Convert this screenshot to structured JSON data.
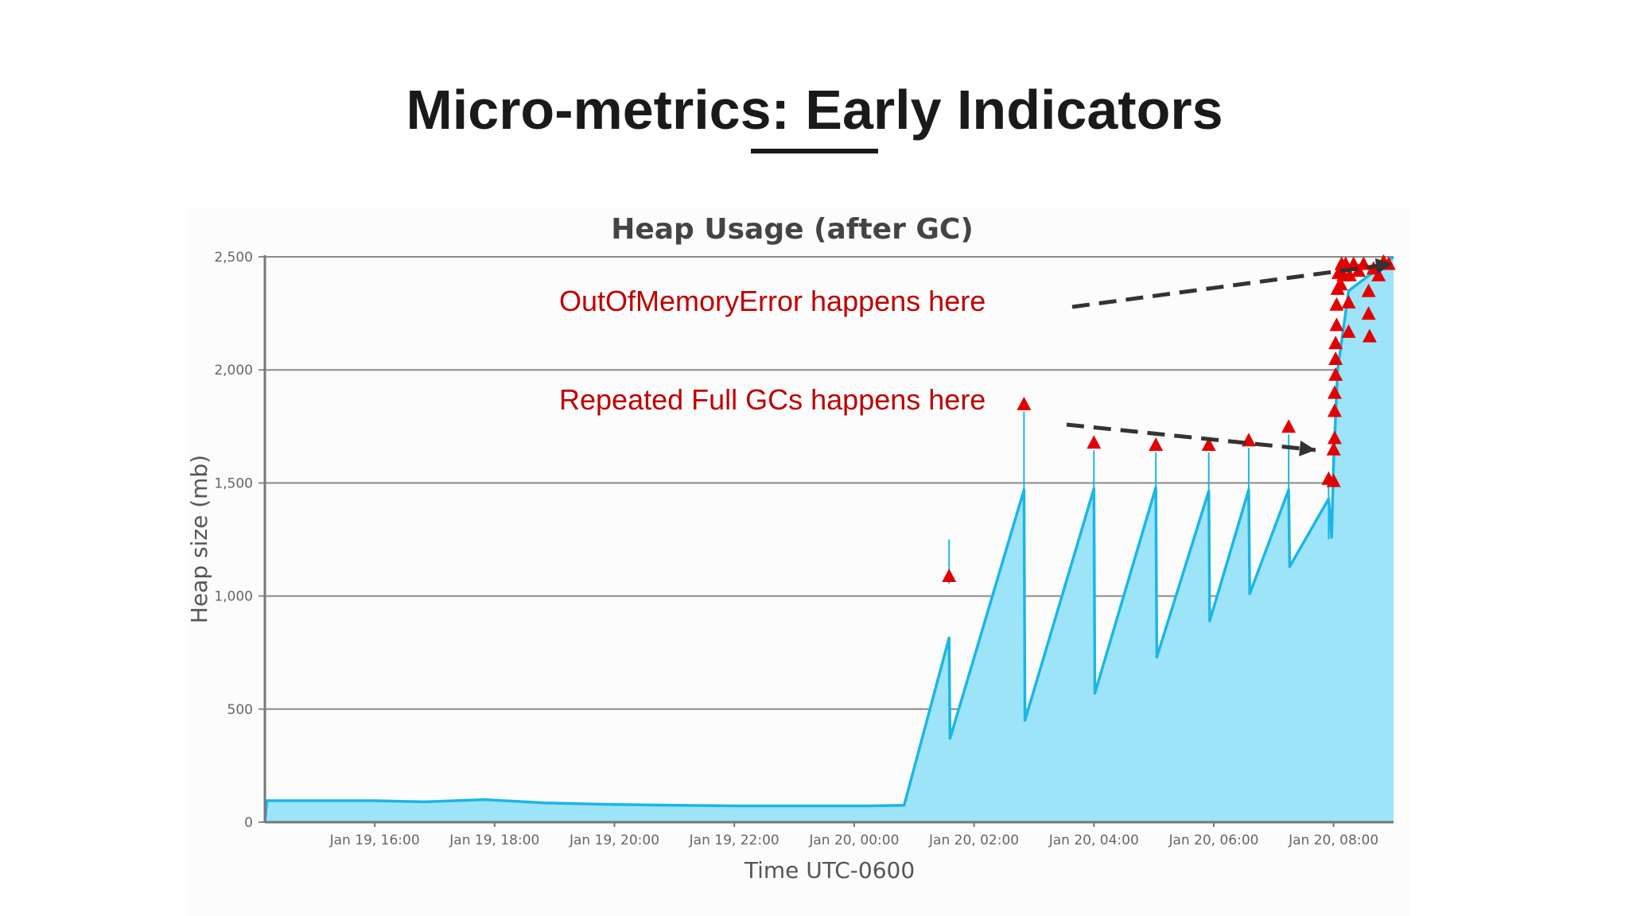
{
  "slide": {
    "title": "Micro-metrics: Early Indicators"
  },
  "annotations": {
    "oom": "OutOfMemoryError happens here",
    "full_gc": "Repeated Full GCs happens here"
  },
  "colors": {
    "area_fill": "#9de4f8",
    "line": "#1bb6e6",
    "marker": "#e30000",
    "annotation_text": "#c00000",
    "grid": "#8a8a8a",
    "arrow": "#333333"
  },
  "chart_data": {
    "type": "area",
    "title": "Heap Usage (after GC)",
    "xlabel": "Time UTC-0600",
    "ylabel": "Heap size (mb)",
    "ylim": [
      0,
      2500
    ],
    "y_ticks": [
      0,
      500,
      1000,
      1500,
      2000,
      2500
    ],
    "y_tick_labels": [
      "0",
      "500",
      "1,000",
      "1,500",
      "2,000",
      "2,500"
    ],
    "xlim": [
      "Jan 19, 14:10",
      "Jan 20, 09:00"
    ],
    "x_ticks": [
      "Jan 19, 16:00",
      "Jan 19, 18:00",
      "Jan 19, 20:00",
      "Jan 19, 22:00",
      "Jan 20, 00:00",
      "Jan 20, 02:00",
      "Jan 20, 04:00",
      "Jan 20, 06:00",
      "Jan 20, 08:00"
    ],
    "grid": true,
    "series": [
      {
        "x": [
          "Jan 19, 14:10",
          "Jan 19, 14:12",
          "Jan 19, 15:00",
          "Jan 19, 16:00",
          "Jan 19, 16:50",
          "Jan 19, 17:50",
          "Jan 19, 18:50",
          "Jan 19, 20:00",
          "Jan 19, 21:00",
          "Jan 19, 22:00",
          "Jan 20, 00:15",
          "Jan 20, 00:50",
          "Jan 20, 01:35",
          "Jan 20, 01:36",
          "Jan 20, 02:50",
          "Jan 20, 02:51",
          "Jan 20, 04:00",
          "Jan 20, 04:01",
          "Jan 20, 05:02",
          "Jan 20, 05:03",
          "Jan 20, 05:55",
          "Jan 20, 05:56",
          "Jan 20, 06:35",
          "Jan 20, 06:36",
          "Jan 20, 07:15",
          "Jan 20, 07:16",
          "Jan 20, 07:55",
          "Jan 20, 07:58",
          "Jan 20, 08:00",
          "Jan 20, 08:04",
          "Jan 20, 08:15",
          "Jan 20, 09:00"
        ],
        "values": [
          0,
          95,
          95,
          95,
          90,
          100,
          85,
          78,
          75,
          72,
          72,
          75,
          815,
          370,
          1470,
          450,
          1475,
          570,
          1480,
          730,
          1465,
          890,
          1470,
          1010,
          1470,
          1130,
          1430,
          1260,
          1600,
          2000,
          2350,
          2500
        ]
      }
    ],
    "markers": [
      {
        "x": "Jan 20, 01:35",
        "y": 1090
      },
      {
        "x": "Jan 20, 02:50",
        "y": 1850
      },
      {
        "x": "Jan 20, 04:00",
        "y": 1680
      },
      {
        "x": "Jan 20, 05:02",
        "y": 1670
      },
      {
        "x": "Jan 20, 05:55",
        "y": 1670
      },
      {
        "x": "Jan 20, 06:35",
        "y": 1690
      },
      {
        "x": "Jan 20, 07:15",
        "y": 1750
      },
      {
        "x": "Jan 20, 07:55",
        "y": 1520
      },
      {
        "x": "Jan 20, 08:00",
        "y": 1510
      },
      {
        "x": "Jan 20, 08:00",
        "y": 1650
      },
      {
        "x": "Jan 20, 08:01",
        "y": 1700
      },
      {
        "x": "Jan 20, 08:01",
        "y": 1820
      },
      {
        "x": "Jan 20, 08:01",
        "y": 1900
      },
      {
        "x": "Jan 20, 08:02",
        "y": 1980
      },
      {
        "x": "Jan 20, 08:02",
        "y": 2050
      },
      {
        "x": "Jan 20, 08:02",
        "y": 2120
      },
      {
        "x": "Jan 20, 08:03",
        "y": 2200
      },
      {
        "x": "Jan 20, 08:03",
        "y": 2290
      },
      {
        "x": "Jan 20, 08:04",
        "y": 2360
      },
      {
        "x": "Jan 20, 08:05",
        "y": 2430
      },
      {
        "x": "Jan 20, 08:07",
        "y": 2380
      },
      {
        "x": "Jan 20, 08:08",
        "y": 2470
      },
      {
        "x": "Jan 20, 08:10",
        "y": 2420
      },
      {
        "x": "Jan 20, 08:12",
        "y": 2470
      },
      {
        "x": "Jan 20, 08:15",
        "y": 2300
      },
      {
        "x": "Jan 20, 08:15",
        "y": 2170
      },
      {
        "x": "Jan 20, 08:16",
        "y": 2420
      },
      {
        "x": "Jan 20, 08:20",
        "y": 2470
      },
      {
        "x": "Jan 20, 08:25",
        "y": 2440
      },
      {
        "x": "Jan 20, 08:30",
        "y": 2470
      },
      {
        "x": "Jan 20, 08:35",
        "y": 2350
      },
      {
        "x": "Jan 20, 08:35",
        "y": 2250
      },
      {
        "x": "Jan 20, 08:36",
        "y": 2150
      },
      {
        "x": "Jan 20, 08:40",
        "y": 2450
      },
      {
        "x": "Jan 20, 08:45",
        "y": 2420
      },
      {
        "x": "Jan 20, 08:50",
        "y": 2480
      },
      {
        "x": "Jan 20, 08:55",
        "y": 2470
      }
    ]
  }
}
